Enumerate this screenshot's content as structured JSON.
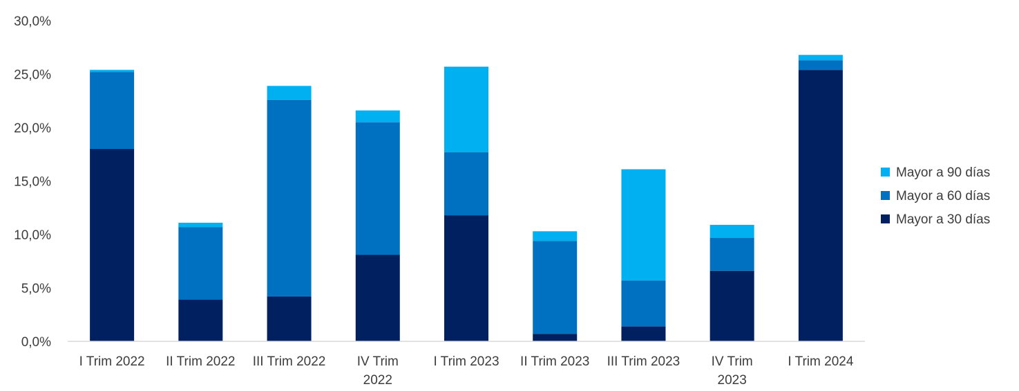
{
  "chart_data": {
    "type": "bar",
    "stacked": true,
    "title": "",
    "xlabel": "",
    "ylabel": "",
    "categories": [
      "I Trim 2022",
      "II Trim 2022",
      "III Trim 2022",
      "IV Trim 2022",
      "I Trim 2023",
      "II Trim 2023",
      "III Trim 2023",
      "IV Trim 2023",
      "I Trim 2024"
    ],
    "category_lines": [
      [
        "I Trim 2022"
      ],
      [
        "II Trim 2022"
      ],
      [
        "III Trim 2022"
      ],
      [
        "IV Trim",
        "2022"
      ],
      [
        "I Trim 2023"
      ],
      [
        "II Trim 2023"
      ],
      [
        "III Trim 2023"
      ],
      [
        "IV Trim",
        "2023"
      ],
      [
        "I Trim 2024"
      ]
    ],
    "series": [
      {
        "name": "Mayor a 30 días",
        "color": "#002060",
        "values": [
          18.0,
          3.9,
          4.2,
          8.1,
          11.8,
          0.7,
          1.4,
          6.6,
          25.4
        ]
      },
      {
        "name": "Mayor a 60 días",
        "color": "#0070C0",
        "values": [
          7.2,
          6.8,
          18.4,
          12.4,
          5.9,
          8.7,
          4.3,
          3.1,
          0.9
        ]
      },
      {
        "name": "Mayor a 90 días",
        "color": "#00B0F0",
        "values": [
          0.2,
          0.4,
          1.3,
          1.1,
          8.0,
          0.9,
          10.4,
          1.2,
          0.5
        ]
      }
    ],
    "ylim": [
      0,
      30
    ],
    "yticks": [
      0,
      5,
      10,
      15,
      20,
      25,
      30
    ],
    "ytick_labels": [
      "0,0%",
      "5,0%",
      "10,0%",
      "15,0%",
      "20,0%",
      "25,0%",
      "30,0%"
    ],
    "grid": false,
    "legend_position": "right",
    "legend_order": [
      "Mayor a 90 días",
      "Mayor a 60 días",
      "Mayor a 30 días"
    ]
  }
}
